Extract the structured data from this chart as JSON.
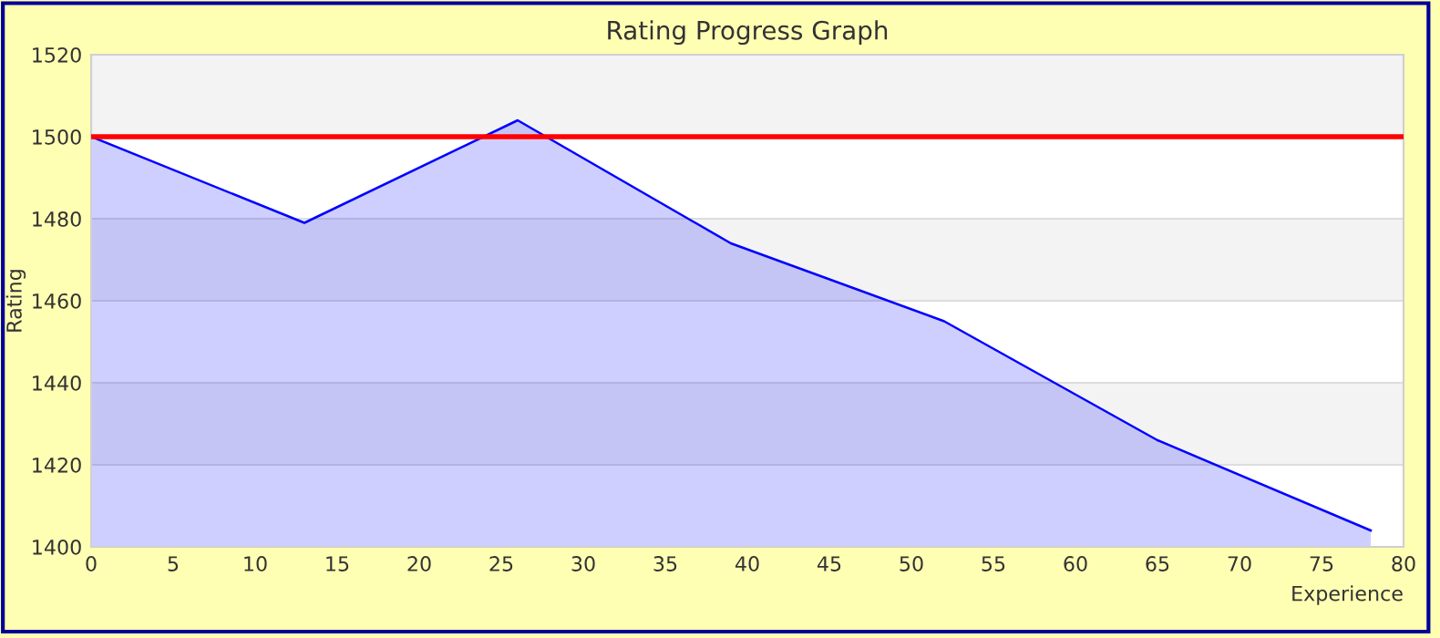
{
  "chart_data": {
    "type": "area",
    "title": "Rating Progress Graph",
    "xlabel": "Experience",
    "ylabel": "Rating",
    "x": [
      0,
      13,
      26,
      39,
      52,
      65,
      78
    ],
    "series": [
      {
        "color": "#0000ff",
        "values": [
          1500,
          1479,
          1504,
          1474,
          1455,
          1426,
          1404
        ]
      }
    ],
    "xlim": [
      0,
      80
    ],
    "xticks": [
      0,
      5,
      10,
      15,
      20,
      25,
      30,
      35,
      40,
      45,
      50,
      55,
      60,
      65,
      70,
      75,
      80
    ],
    "ylim": [
      1400,
      1520
    ],
    "yticks": [
      1400,
      1420,
      1440,
      1460,
      1480,
      1500,
      1520
    ],
    "ref_lines": [
      {
        "axis": "y",
        "value": 1500,
        "color": "#ff0000"
      }
    ],
    "grid": "y",
    "legend": false
  }
}
